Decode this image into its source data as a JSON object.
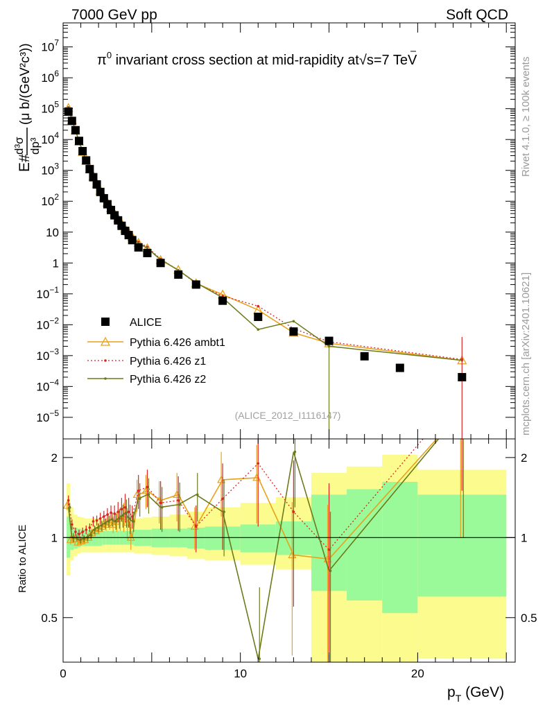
{
  "header": {
    "beam": "7000 GeV pp",
    "category": "Soft QCD"
  },
  "side_labels": {
    "rivet": "Rivet 4.1.0, ≥ 100k events",
    "mcplots": "mcplots.cern.ch [arXiv:2401.10621]"
  },
  "chart_data": [
    {
      "type": "scatter",
      "panel": "main",
      "title_prefix": "π",
      "title_sup": "0",
      "title_main": " invariant cross section at mid-rapidity at",
      "title_sqrt": "√",
      "title_energy": "s=7 TeV",
      "ylabel": "E#d³σ/dp³ (μ b/(GeV²c³))",
      "ylabel_parts": {
        "e": "E#",
        "num": "d³σ",
        "den": "dp³",
        "unit": "(μ b/(GeV²c³))"
      },
      "xlabel": "pT (GeV)",
      "xlabel_parts": {
        "p": "p",
        "sub": "T",
        "unit": " (GeV)"
      },
      "yscale": "log",
      "xlim": [
        0,
        25.5
      ],
      "ylim": [
        2e-06,
        60000000.0
      ],
      "y_tick_labels": [
        {
          "base": "10",
          "exp": "−5"
        },
        {
          "base": "10",
          "exp": "−4"
        },
        {
          "base": "10",
          "exp": "−3"
        },
        {
          "base": "10",
          "exp": "−2"
        },
        {
          "base": "10",
          "exp": "−1"
        },
        {
          "base": "1",
          "exp": ""
        },
        {
          "base": "10",
          "exp": ""
        },
        {
          "base": "10",
          "exp": "2"
        },
        {
          "base": "10",
          "exp": "3"
        },
        {
          "base": "10",
          "exp": "4"
        },
        {
          "base": "10",
          "exp": "5"
        },
        {
          "base": "10",
          "exp": "6"
        },
        {
          "base": "10",
          "exp": "7"
        }
      ],
      "watermark": "(ALICE_2012_I1116147)",
      "legend_position": "bottom-left",
      "series": [
        {
          "name": "ALICE",
          "style": "data",
          "color": "#000000",
          "x": [
            0.3,
            0.5,
            0.7,
            0.9,
            1.1,
            1.3,
            1.5,
            1.7,
            1.9,
            2.1,
            2.3,
            2.5,
            2.7,
            2.9,
            3.1,
            3.3,
            3.5,
            3.7,
            3.9,
            4.25,
            4.75,
            5.5,
            6.5,
            7.5,
            9,
            11,
            13,
            15,
            17,
            19,
            22.5
          ],
          "y": [
            80000,
            40000,
            20000,
            9000,
            4200,
            2100,
            1100,
            600,
            350,
            200,
            125,
            80,
            52,
            35,
            24,
            16,
            11,
            8,
            5.5,
            3.2,
            2.1,
            1.0,
            0.42,
            0.2,
            0.06,
            0.018,
            0.006,
            0.003,
            0.00095,
            0.0004,
            0.0002
          ]
        },
        {
          "name": "Pythia 6.426 ambt1",
          "style": "triangle",
          "color": "#e8a11a",
          "x": [
            0.3,
            0.5,
            0.7,
            0.9,
            1.1,
            1.3,
            1.5,
            1.7,
            1.9,
            2.1,
            2.3,
            2.5,
            2.7,
            2.9,
            3.1,
            3.3,
            3.5,
            3.7,
            3.9,
            4.25,
            4.75,
            5.5,
            6.5,
            7.5,
            9,
            11,
            13,
            15,
            22.5
          ],
          "y": [
            105000,
            42000,
            19500,
            8600,
            4000,
            2050,
            1100,
            630,
            370,
            218,
            138,
            90,
            60,
            40,
            28,
            19,
            13,
            10,
            7,
            4.5,
            3,
            1.25,
            0.6,
            0.22,
            0.095,
            0.03,
            0.0055,
            0.0025,
            0.0007
          ]
        },
        {
          "name": "Pythia 6.426 z1",
          "style": "dotted",
          "color": "#dd2222",
          "x": [
            0.3,
            0.5,
            0.7,
            0.9,
            1.1,
            1.3,
            1.5,
            1.7,
            1.9,
            2.1,
            2.3,
            2.5,
            2.7,
            2.9,
            3.1,
            3.3,
            3.5,
            3.7,
            3.9,
            4.25,
            4.75,
            5.5,
            6.5,
            7.5,
            9,
            11,
            13,
            15,
            22.5
          ],
          "y": [
            110000,
            45000,
            21000,
            9300,
            4400,
            2250,
            1200,
            690,
            400,
            235,
            150,
            98,
            64,
            43,
            30,
            21,
            14,
            10.5,
            7.5,
            4.8,
            3.3,
            1.35,
            0.58,
            0.22,
            0.085,
            0.04,
            0.0075,
            0.0028,
            0.00075
          ]
        },
        {
          "name": "Pythia 6.426 z2",
          "style": "solid",
          "color": "#6b7a1a",
          "x": [
            0.3,
            0.5,
            0.7,
            0.9,
            1.1,
            1.3,
            1.5,
            1.7,
            1.9,
            2.1,
            2.3,
            2.5,
            2.7,
            2.9,
            3.1,
            3.3,
            3.5,
            3.7,
            3.9,
            4.25,
            4.75,
            5.5,
            6.5,
            7.5,
            9,
            11,
            13,
            15,
            22.5
          ],
          "y": [
            105000,
            43000,
            20000,
            8800,
            4150,
            2100,
            1130,
            650,
            380,
            225,
            143,
            93,
            61,
            41,
            29,
            20,
            13.5,
            10,
            7,
            4.4,
            3,
            1.3,
            0.58,
            0.23,
            0.075,
            0.007,
            0.013,
            0.002,
            0.0007
          ]
        }
      ]
    },
    {
      "type": "line",
      "panel": "ratio",
      "ylabel": "Ratio to ALICE",
      "xlim": [
        0,
        25.5
      ],
      "ylim": [
        0.34,
        2.35
      ],
      "yscale": "log",
      "y_ticks": [
        0.5,
        1,
        2
      ],
      "x_ticks": [
        0,
        10,
        20
      ],
      "band_edges": [
        0.2,
        0.4,
        0.6,
        0.8,
        1.0,
        1.2,
        1.4,
        1.6,
        1.8,
        2.0,
        2.2,
        2.4,
        2.6,
        2.8,
        3.0,
        3.2,
        3.4,
        3.6,
        3.8,
        4.0,
        4.5,
        5.0,
        6.0,
        7.0,
        8.0,
        10.0,
        12.0,
        14.0,
        16.0,
        18.0,
        20.0,
        25.0
      ],
      "band_green_low": [
        0.84,
        0.9,
        0.91,
        0.92,
        0.93,
        0.93,
        0.93,
        0.93,
        0.93,
        0.93,
        0.94,
        0.94,
        0.94,
        0.94,
        0.94,
        0.94,
        0.94,
        0.94,
        0.94,
        0.93,
        0.93,
        0.92,
        0.92,
        0.91,
        0.9,
        0.88,
        0.86,
        0.63,
        0.58,
        0.52,
        0.6
      ],
      "band_green_high": [
        1.2,
        1.1,
        1.09,
        1.08,
        1.07,
        1.07,
        1.07,
        1.07,
        1.07,
        1.07,
        1.06,
        1.06,
        1.06,
        1.06,
        1.06,
        1.06,
        1.06,
        1.06,
        1.06,
        1.07,
        1.07,
        1.08,
        1.08,
        1.09,
        1.1,
        1.12,
        1.15,
        1.45,
        1.52,
        1.62,
        1.45
      ],
      "band_yellow_low": [
        0.72,
        0.82,
        0.85,
        0.87,
        0.88,
        0.88,
        0.88,
        0.88,
        0.88,
        0.88,
        0.88,
        0.88,
        0.88,
        0.88,
        0.88,
        0.88,
        0.88,
        0.88,
        0.88,
        0.87,
        0.87,
        0.86,
        0.85,
        0.83,
        0.82,
        0.79,
        0.76,
        0.3,
        0.3,
        0.3,
        0.35
      ],
      "band_yellow_high": [
        1.6,
        1.3,
        1.22,
        1.2,
        1.19,
        1.18,
        1.18,
        1.18,
        1.18,
        1.18,
        1.17,
        1.17,
        1.17,
        1.17,
        1.17,
        1.17,
        1.17,
        1.17,
        1.17,
        1.18,
        1.19,
        1.2,
        1.22,
        1.25,
        1.3,
        1.35,
        1.42,
        1.75,
        1.85,
        2.05,
        1.8
      ],
      "series": [
        {
          "name": "Pythia 6.426 ambt1",
          "color": "#e8a11a",
          "x": [
            0.3,
            0.5,
            0.7,
            0.9,
            1.1,
            1.3,
            1.5,
            1.7,
            1.9,
            2.1,
            2.3,
            2.5,
            2.7,
            2.9,
            3.1,
            3.3,
            3.5,
            3.7,
            3.9,
            4.25,
            4.75,
            5.5,
            6.5,
            7.5,
            9,
            11,
            13,
            15,
            22.5
          ],
          "y": [
            1.32,
            0.98,
            0.99,
            0.96,
            0.97,
            0.98,
            1.0,
            1.04,
            1.06,
            1.08,
            1.1,
            1.12,
            1.14,
            1.12,
            1.15,
            1.18,
            1.2,
            1.14,
            1.0,
            1.45,
            1.5,
            1.38,
            1.45,
            1.1,
            1.65,
            1.68,
            0.86,
            0.83,
            3.0
          ],
          "err": [
            0.05,
            0.04,
            0.03,
            0.03,
            0.03,
            0.03,
            0.03,
            0.04,
            0.04,
            0.05,
            0.05,
            0.06,
            0.07,
            0.08,
            0.1,
            0.12,
            0.15,
            0.15,
            0.1,
            0.2,
            0.22,
            0.25,
            0.3,
            0.2,
            0.45,
            0.55,
            0.5,
            0.5,
            2.0
          ]
        },
        {
          "name": "Pythia 6.426 z1",
          "color": "#dd2222",
          "x": [
            0.3,
            0.5,
            0.7,
            0.9,
            1.1,
            1.3,
            1.5,
            1.7,
            1.9,
            2.1,
            2.3,
            2.5,
            2.7,
            2.9,
            3.1,
            3.3,
            3.5,
            3.7,
            3.9,
            4.25,
            4.75,
            5.5,
            6.5,
            7.5,
            9,
            11,
            13,
            15,
            22.5
          ],
          "y": [
            1.38,
            1.12,
            1.05,
            1.03,
            1.05,
            1.07,
            1.09,
            1.15,
            1.16,
            1.18,
            1.2,
            1.22,
            1.24,
            1.23,
            1.25,
            1.28,
            1.3,
            1.25,
            1.2,
            1.5,
            1.55,
            1.35,
            1.38,
            1.1,
            1.4,
            1.9,
            1.25,
            0.9,
            3.5
          ],
          "err": [
            0.06,
            0.05,
            0.04,
            0.04,
            0.04,
            0.04,
            0.04,
            0.05,
            0.05,
            0.06,
            0.06,
            0.07,
            0.08,
            0.09,
            0.11,
            0.13,
            0.16,
            0.16,
            0.12,
            0.22,
            0.25,
            0.28,
            0.32,
            0.22,
            0.5,
            0.8,
            0.7,
            0.7,
            2.0
          ]
        },
        {
          "name": "Pythia 6.426 z2",
          "color": "#6b7a1a",
          "x": [
            0.3,
            0.5,
            0.7,
            0.9,
            1.1,
            1.3,
            1.5,
            1.7,
            1.9,
            2.1,
            2.3,
            2.5,
            2.7,
            2.9,
            3.1,
            3.3,
            3.5,
            3.7,
            3.9,
            4.25,
            4.75,
            5.5,
            6.5,
            7.5,
            9,
            11,
            13,
            15,
            22.5
          ],
          "y": [
            1.3,
            1.0,
            1.0,
            0.98,
            0.99,
            1.0,
            1.02,
            1.07,
            1.09,
            1.11,
            1.13,
            1.15,
            1.17,
            1.15,
            1.18,
            1.21,
            1.24,
            1.18,
            1.15,
            1.4,
            1.45,
            1.3,
            1.33,
            1.45,
            1.25,
            0.35,
            2.1,
            0.75,
            3.0
          ],
          "err": [
            0.05,
            0.04,
            0.03,
            0.03,
            0.03,
            0.03,
            0.03,
            0.04,
            0.04,
            0.05,
            0.05,
            0.06,
            0.07,
            0.08,
            0.1,
            0.12,
            0.15,
            0.15,
            0.1,
            0.2,
            0.22,
            0.25,
            0.28,
            0.3,
            0.4,
            0.3,
            0.8,
            0.5,
            2.0
          ]
        }
      ]
    }
  ],
  "colors": {
    "band_green": "#9afa9a",
    "band_yellow": "#fbfb8e",
    "axis": "#000000"
  }
}
